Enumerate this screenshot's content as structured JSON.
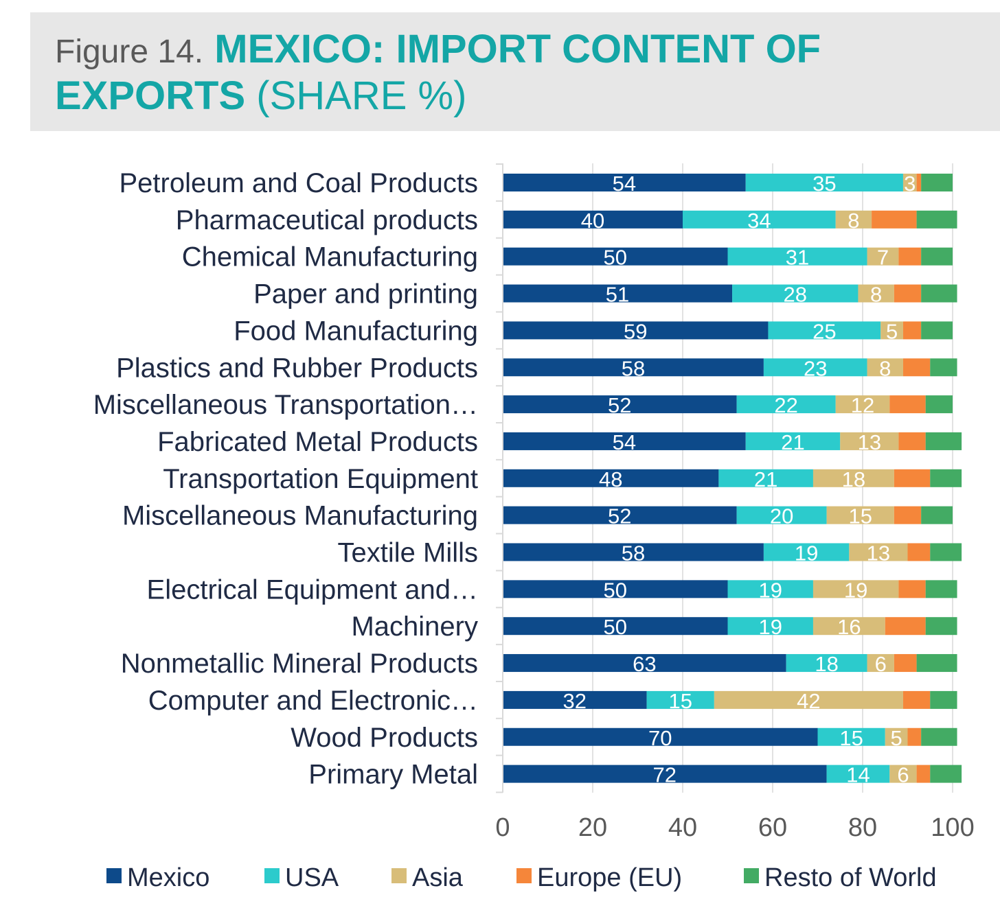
{
  "title": {
    "prefix": "Figure 14.",
    "main_line1": "MEXICO: IMPORT CONTENT OF",
    "main_line2": "EXPORTS",
    "unit": "(SHARE %)"
  },
  "colors": {
    "Mexico": "#0d4a8a",
    "USA": "#2ccbcc",
    "Asia": "#d8bd79",
    "Europe (EU)": "#f5863a",
    "Resto of World": "#43ab64"
  },
  "chart_data": {
    "type": "bar",
    "orientation": "horizontal",
    "stacked": true,
    "xlim": [
      0,
      100
    ],
    "xticks": [
      0,
      20,
      40,
      60,
      80,
      100
    ],
    "grid": true,
    "legend_position": "bottom",
    "categories": [
      "Petroleum and Coal Products",
      "Pharmaceutical products",
      "Chemical Manufacturing",
      "Paper and printing",
      "Food Manufacturing",
      "Plastics and Rubber Products",
      "Miscellaneous Transportation…",
      "Fabricated Metal Products",
      "Transportation Equipment",
      "Miscellaneous Manufacturing",
      "Textile Mills",
      "Electrical Equipment and…",
      "Machinery",
      "Nonmetallic Mineral Products",
      "Computer and Electronic…",
      "Wood Products",
      "Primary Metal"
    ],
    "series": [
      {
        "name": "Mexico",
        "values": [
          54,
          40,
          50,
          51,
          59,
          58,
          52,
          54,
          48,
          52,
          58,
          50,
          50,
          63,
          32,
          70,
          72
        ],
        "labels": [
          "54",
          "40",
          "50",
          "51",
          "59",
          "58",
          "52",
          "54",
          "48",
          "52",
          "58",
          "50",
          "50",
          "63",
          "32",
          "70",
          "72"
        ]
      },
      {
        "name": "USA",
        "values": [
          35,
          34,
          31,
          28,
          25,
          23,
          22,
          21,
          21,
          20,
          19,
          19,
          19,
          18,
          15,
          15,
          14
        ],
        "labels": [
          "35",
          "34",
          "31",
          "28",
          "25",
          "23",
          "22",
          "21",
          "21",
          "20",
          "19",
          "19",
          "19",
          "18",
          "15",
          "15",
          "14"
        ]
      },
      {
        "name": "Asia",
        "values": [
          3,
          8,
          7,
          8,
          5,
          8,
          12,
          13,
          18,
          15,
          13,
          19,
          16,
          6,
          42,
          5,
          6
        ],
        "labels": [
          "3",
          "8",
          "7",
          "8",
          "5",
          "8",
          "12",
          "13",
          "18",
          "15",
          "13",
          "19",
          "16",
          "6",
          "42",
          "5",
          "6"
        ]
      },
      {
        "name": "Europe (EU)",
        "values": [
          1,
          10,
          5,
          6,
          4,
          6,
          8,
          6,
          8,
          6,
          5,
          6,
          9,
          5,
          6,
          3,
          3
        ]
      },
      {
        "name": "Resto of World",
        "values": [
          7,
          9,
          7,
          8,
          7,
          6,
          6,
          8,
          7,
          7,
          7,
          7,
          7,
          9,
          6,
          8,
          7
        ]
      }
    ]
  }
}
